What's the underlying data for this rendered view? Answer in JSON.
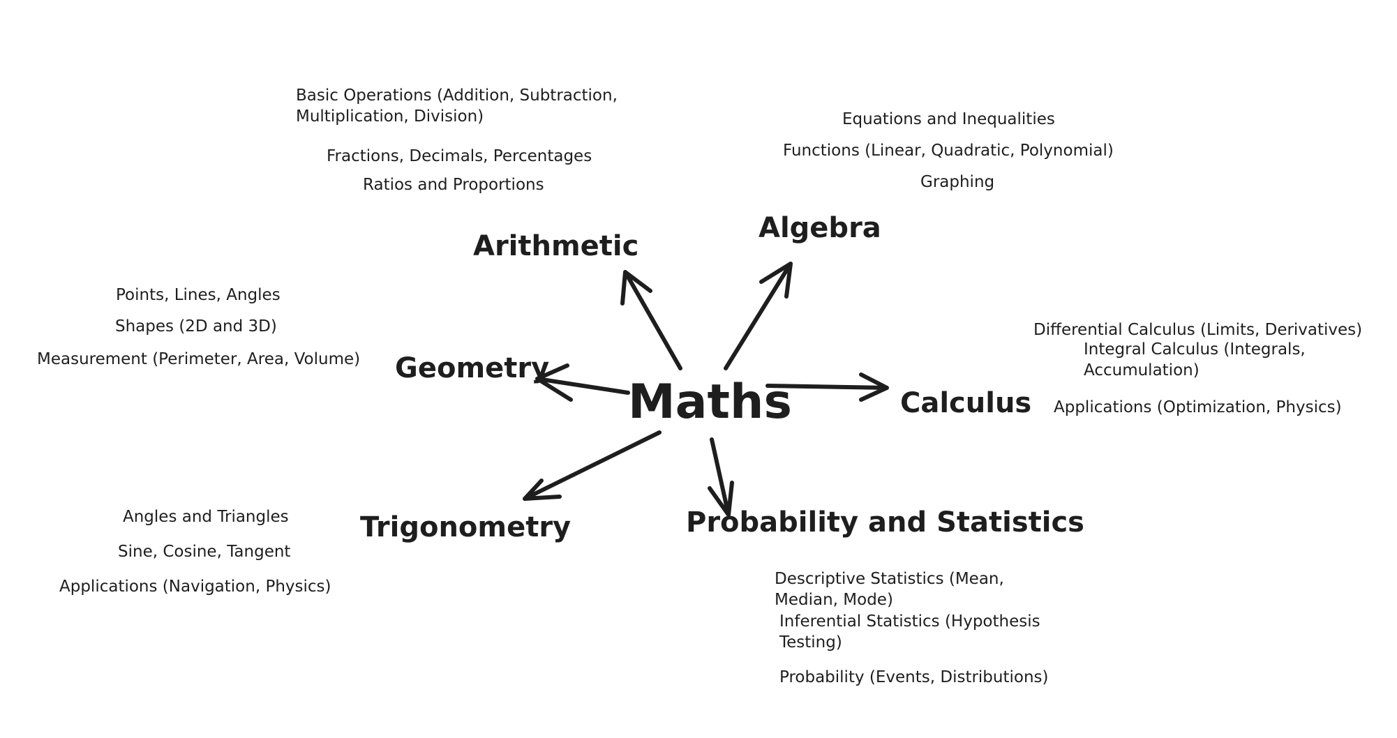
{
  "center": "Maths",
  "topics": {
    "arithmetic": {
      "label": "Arithmetic",
      "items": [
        "Basic Operations (Addition, Subtraction, Multiplication, Division)",
        "Fractions, Decimals, Percentages",
        "Ratios and Proportions"
      ]
    },
    "algebra": {
      "label": "Algebra",
      "items": [
        "Equations and Inequalities",
        "Functions (Linear, Quadratic, Polynomial)",
        "Graphing"
      ]
    },
    "geometry": {
      "label": "Geometry",
      "items": [
        "Points, Lines, Angles",
        "Shapes (2D and 3D)",
        "Measurement (Perimeter, Area, Volume)"
      ]
    },
    "calculus": {
      "label": "Calculus",
      "items": [
        "Differential Calculus (Limits, Derivatives)",
        "Integral Calculus (Integrals, Accumulation)",
        "Applications (Optimization, Physics)"
      ]
    },
    "trigonometry": {
      "label": "Trigonometry",
      "items": [
        "Angles and Triangles",
        "Sine, Cosine, Tangent",
        "Applications (Navigation, Physics)"
      ]
    },
    "probability_statistics": {
      "label": "Probability and Statistics",
      "items": [
        "Descriptive Statistics (Mean, Median, Mode)",
        "Inferential Statistics (Hypothesis Testing)",
        "Probability (Events, Distributions)"
      ]
    }
  }
}
